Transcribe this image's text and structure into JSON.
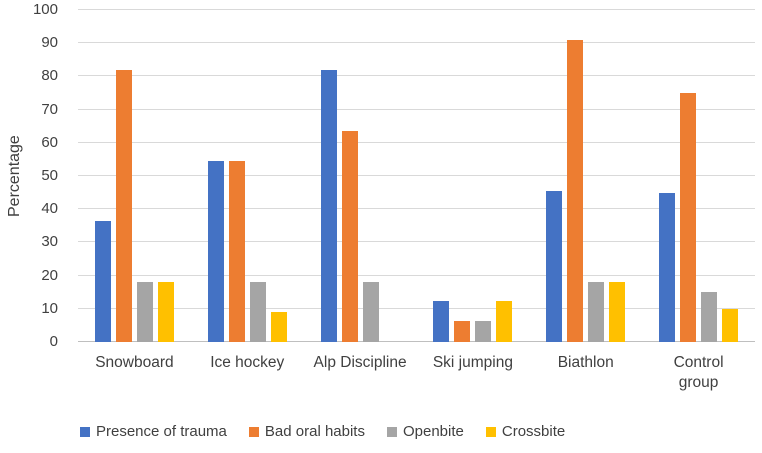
{
  "chart_data": {
    "type": "bar",
    "title": "",
    "ylabel": "Percentage",
    "xlabel": "",
    "ylim": [
      0,
      100
    ],
    "ytick_step": 10,
    "grid": true,
    "legend_position": "bottom",
    "categories": [
      "Snowboard",
      "Ice hockey",
      "Alp Discipline",
      "Ski jumping",
      "Biathlon",
      "Control\ngroup"
    ],
    "series": [
      {
        "name": "Presence of trauma",
        "color": "#4472C4",
        "values": [
          36.4,
          54.5,
          81.8,
          12.5,
          45.5,
          45
        ]
      },
      {
        "name": "Bad oral habits",
        "color": "#ED7D31",
        "values": [
          81.8,
          54.5,
          63.6,
          6.3,
          90.9,
          75
        ]
      },
      {
        "name": "Openbite",
        "color": "#A5A5A5",
        "values": [
          18.2,
          18.2,
          18.2,
          6.3,
          18.2,
          15
        ]
      },
      {
        "name": "Crossbite",
        "color": "#FFC000",
        "values": [
          18.2,
          9.1,
          0,
          12.5,
          18.2,
          10
        ]
      }
    ],
    "styles": {
      "text_color": "#404040",
      "gridline_color": "#D9D9D9",
      "axis_line_color": "#BFBFBF",
      "background": "#FFFFFF"
    }
  }
}
